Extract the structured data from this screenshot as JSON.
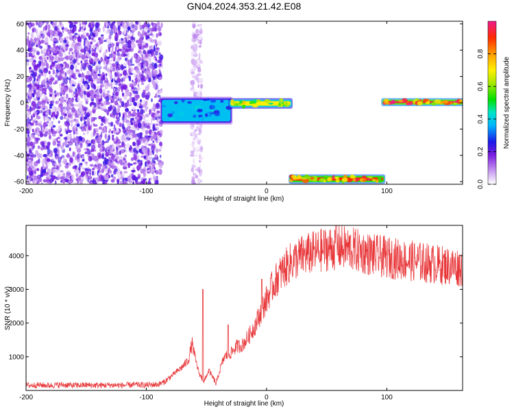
{
  "figure": {
    "title": "GN04.2024.353.21.42.E08"
  },
  "chart_data": [
    {
      "type": "heatmap",
      "xlabel": "Height of straight line (km)",
      "ylabel": "Frequency (Hz)",
      "xlim": [
        -200,
        163
      ],
      "ylim": [
        -62,
        62
      ],
      "x_ticks": [
        -200,
        -100,
        0,
        100
      ],
      "y_ticks": [
        -60,
        -40,
        -20,
        0,
        20,
        40,
        60
      ],
      "y_tick_labels": [
        "-60",
        "-40",
        "-20",
        "0",
        "20",
        "40",
        "60"
      ],
      "colorbar": {
        "label": "Normalized spectral amplitude",
        "range": [
          0,
          1
        ],
        "ticks": [
          0.0,
          0.2,
          0.4,
          0.6,
          0.8
        ],
        "tick_labels": [
          "0.0",
          "0.2",
          "0.4",
          "0.6",
          "0.8"
        ]
      },
      "regions": [
        {
          "x": [
            -200,
            -87
          ],
          "y": [
            -62,
            62
          ],
          "amplitude": 0.12
        },
        {
          "x": [
            -62,
            -54
          ],
          "y": [
            -62,
            62
          ],
          "amplitude": 0.05
        },
        {
          "x": [
            -87,
            -30
          ],
          "y": [
            -15,
            3
          ],
          "amplitude": 0.38
        },
        {
          "x": [
            -30,
            20
          ],
          "y": [
            -3,
            2
          ],
          "amplitude": 0.7
        },
        {
          "x": [
            20,
            97
          ],
          "y": [
            -60,
            -56
          ],
          "amplitude": 0.9
        },
        {
          "x": [
            97,
            163
          ],
          "y": [
            -1,
            2
          ],
          "amplitude": 0.95
        }
      ]
    },
    {
      "type": "line",
      "xlabel": "Height of straight line (km)",
      "ylabel": "SNR (10 * v/v)",
      "xlim": [
        -200,
        163
      ],
      "ylim": [
        0,
        4900
      ],
      "x_ticks": [
        -200,
        -100,
        0,
        100
      ],
      "y_ticks": [
        1000,
        2000,
        3000,
        4000
      ],
      "color": "#e8383b",
      "series": [
        {
          "x": [
            -200,
            -190,
            -180,
            -170,
            -160,
            -150,
            -140,
            -130,
            -120,
            -110,
            -100,
            -90,
            -85,
            -80,
            -75,
            -70,
            -65,
            -62,
            -59,
            -56,
            -52,
            -48,
            -45,
            -42,
            -38,
            -35,
            -30,
            -25,
            -20,
            -15,
            -10,
            -5,
            0,
            5,
            10,
            15,
            20,
            25,
            30,
            40,
            50,
            60,
            70,
            80,
            90,
            100,
            110,
            120,
            130,
            140,
            150,
            163
          ],
          "y": [
            150,
            160,
            150,
            170,
            150,
            160,
            150,
            160,
            150,
            170,
            160,
            180,
            250,
            400,
            550,
            700,
            900,
            1400,
            900,
            500,
            250,
            600,
            400,
            200,
            700,
            1000,
            1100,
            1300,
            1350,
            1600,
            1900,
            2300,
            2700,
            3100,
            3400,
            3600,
            3800,
            3900,
            4000,
            4100,
            4200,
            4250,
            4200,
            4100,
            4000,
            3950,
            3900,
            3850,
            3800,
            3750,
            3700,
            3650
          ]
        }
      ],
      "peaks": [
        {
          "x": -53,
          "y": 3000
        },
        {
          "x": -32,
          "y": 1950
        },
        {
          "x": -4,
          "y": 3300
        },
        {
          "x": 58,
          "y": 4900
        }
      ]
    }
  ]
}
